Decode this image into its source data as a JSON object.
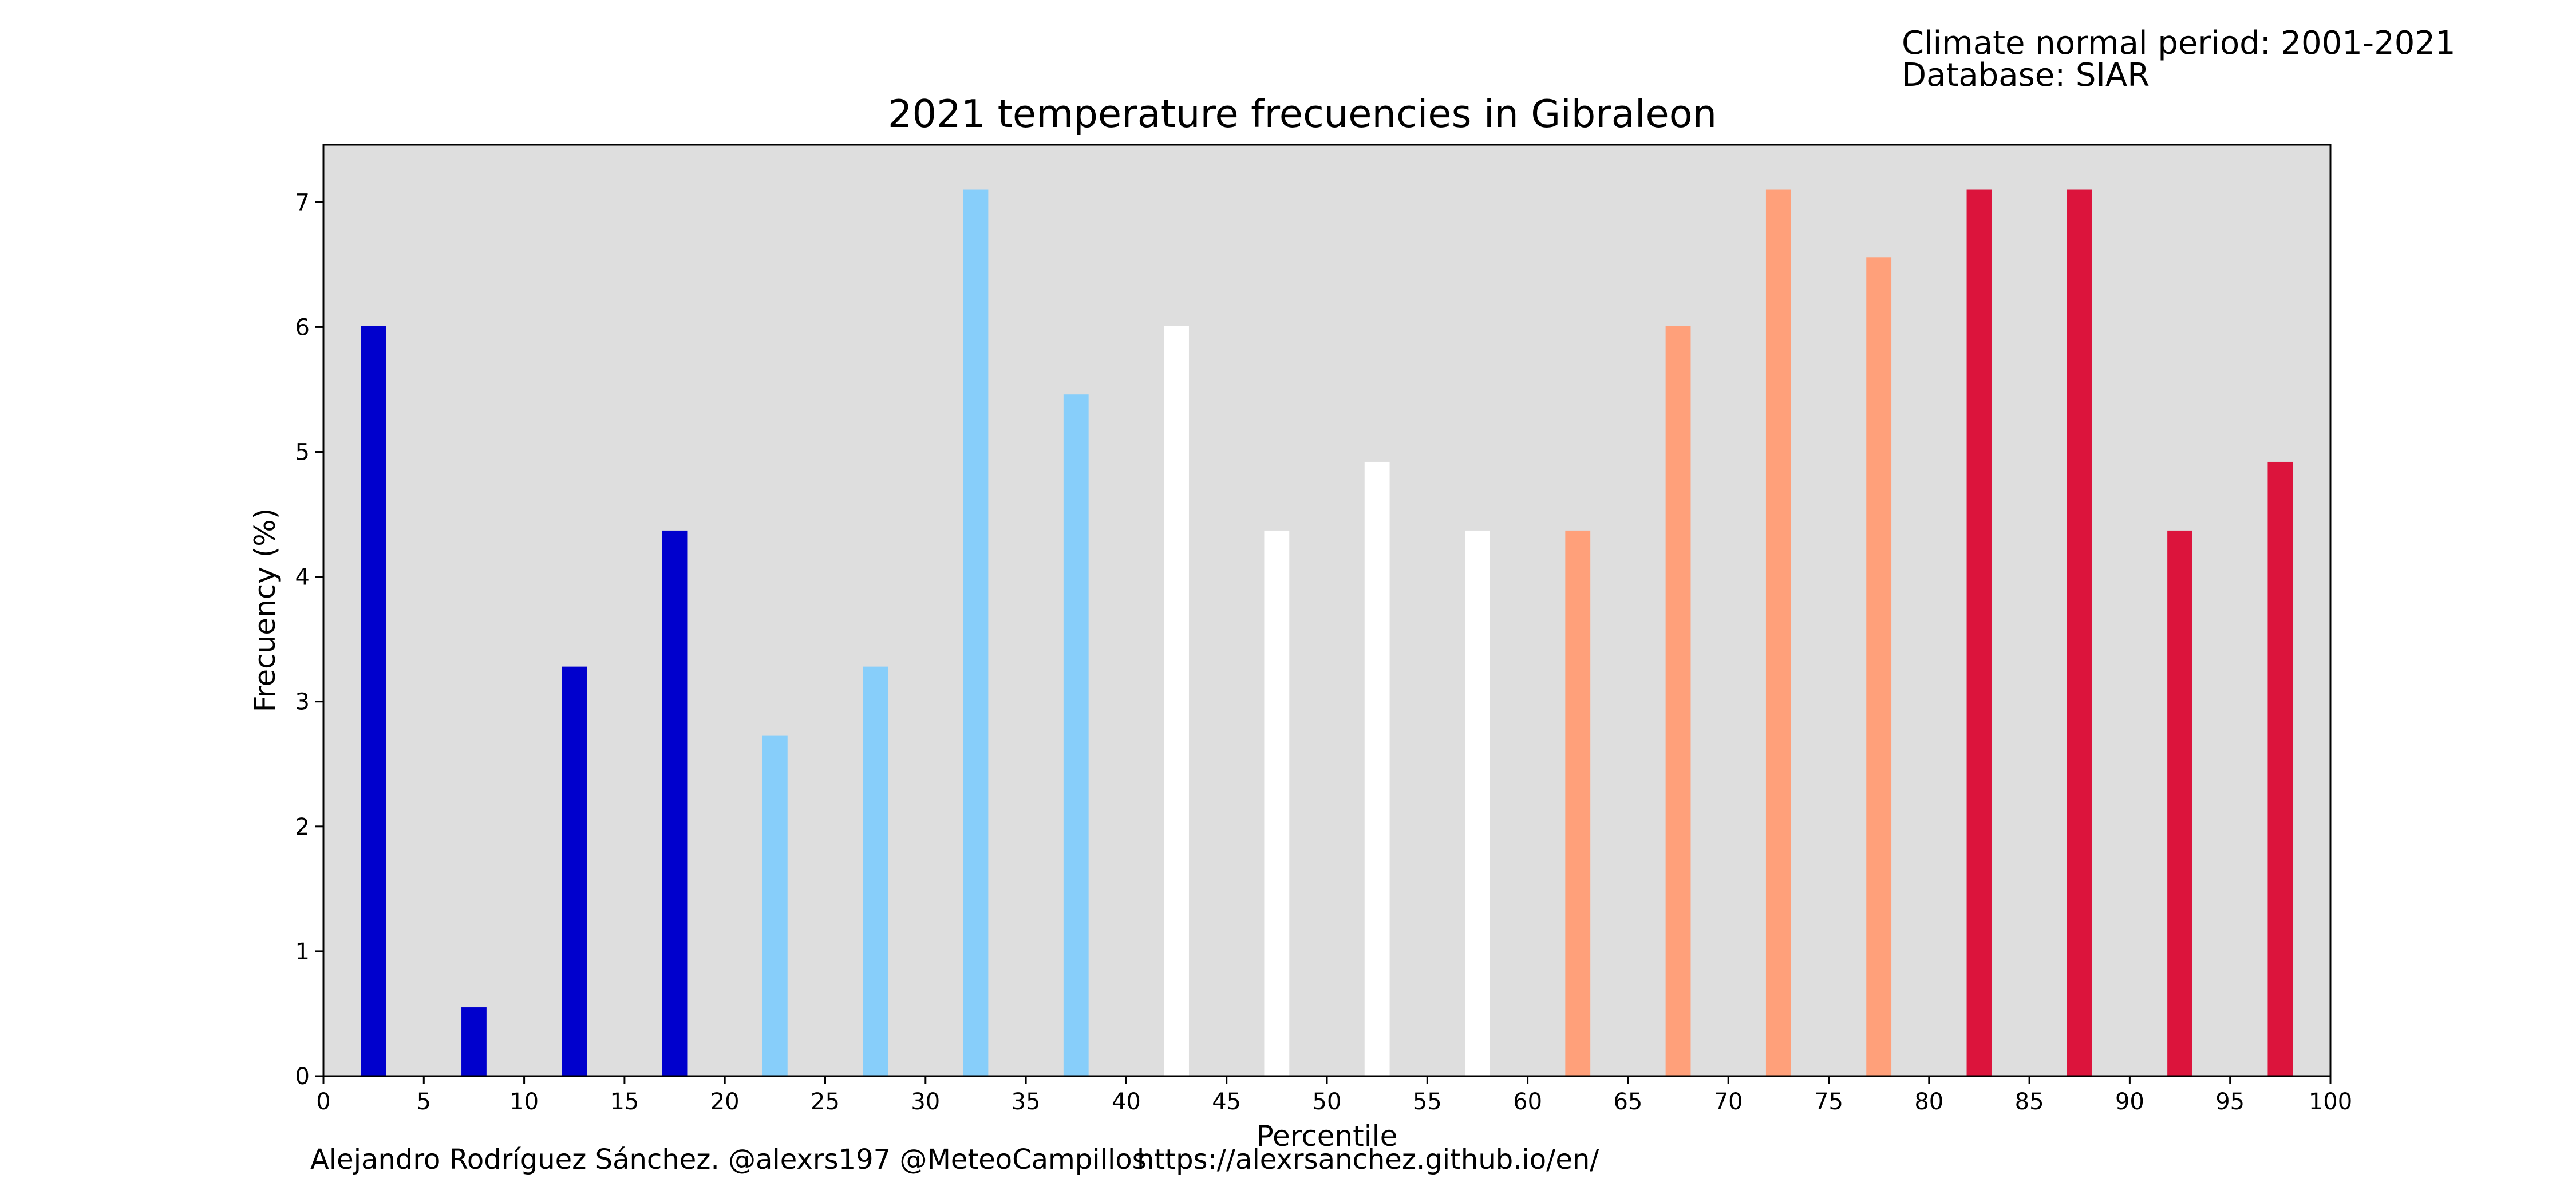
{
  "info": {
    "period": "Climate normal period: 2001-2021",
    "database": "Database: SIAR"
  },
  "credits": {
    "author": "Alejandro Rodríguez Sánchez. @alexrs197 @MeteoCampillos",
    "url": "https://alexrsanchez.github.io/en/"
  },
  "chart_data": {
    "type": "bar",
    "title": "2021 temperature frecuencies in Gibraleon",
    "xlabel": "Percentile",
    "ylabel": "Frecuency (%)",
    "xlim": [
      0,
      100
    ],
    "ylim": [
      0,
      7.46
    ],
    "xticks": [
      0,
      5,
      10,
      15,
      20,
      25,
      30,
      35,
      40,
      45,
      50,
      55,
      60,
      65,
      70,
      75,
      80,
      85,
      90,
      95,
      100
    ],
    "yticks": [
      0,
      1,
      2,
      3,
      4,
      5,
      6,
      7
    ],
    "grid": false,
    "plot_background": "#dedede",
    "bar_width": 1.25,
    "x": [
      2.5,
      7.5,
      12.5,
      17.5,
      22.5,
      27.5,
      32.5,
      37.5,
      42.5,
      47.5,
      52.5,
      57.5,
      62.5,
      67.5,
      72.5,
      77.5,
      82.5,
      87.5,
      92.5,
      97.5
    ],
    "values": [
      6.01,
      0.55,
      3.28,
      4.37,
      2.73,
      3.28,
      7.1,
      5.46,
      6.01,
      4.37,
      4.92,
      4.37,
      4.37,
      6.01,
      7.1,
      6.56,
      7.1,
      7.1,
      4.37,
      4.92
    ],
    "colors": [
      "#0000cd",
      "#0000cd",
      "#0000cd",
      "#0000cd",
      "#87cefa",
      "#87cefa",
      "#87cefa",
      "#87cefa",
      "#ffffff",
      "#ffffff",
      "#ffffff",
      "#ffffff",
      "#ffa07a",
      "#ffa07a",
      "#ffa07a",
      "#ffa07a",
      "#dc143c",
      "#dc143c",
      "#dc143c",
      "#dc143c"
    ]
  }
}
